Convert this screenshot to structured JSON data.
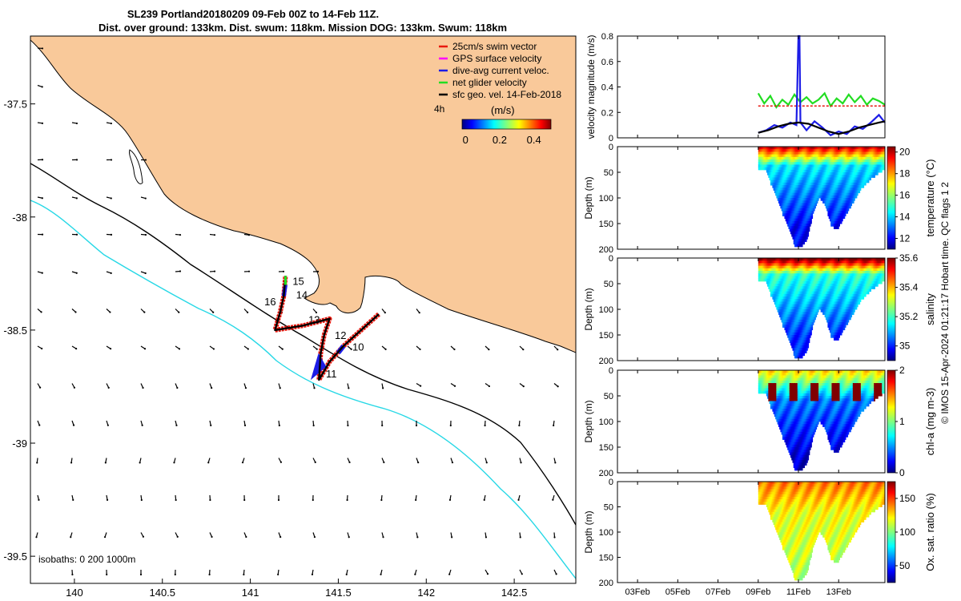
{
  "title": {
    "line1": "SL239 Portland20180209 09-Feb 00Z to 14-Feb 11Z.",
    "line2": "Dist. over ground: 133km. Dist. swum: 118km. Mission DOG: 133km. Swum: 118km"
  },
  "credit": "© IMOS 15-Apr-2024 01:21:17 Hobart time. QC flags 1  2",
  "colors": {
    "land": "#F9C99A",
    "coast": "#000000",
    "isobath_200": "#000000",
    "isobath_1000": "#27D8E6",
    "swim": "#E8190F",
    "gps": "#FF00FF",
    "current": "#1C1CE6",
    "net": "#22DD22",
    "sfc": "#000000"
  },
  "map": {
    "legend": [
      {
        "label": "25cm/s swim vector",
        "color": "#E8190F"
      },
      {
        "label": "GPS surface velocity",
        "color": "#FF00FF"
      },
      {
        "label": "dive-avg current veloc.",
        "color": "#1C1CE6"
      },
      {
        "label": "net glider velocity",
        "color": "#22DD22"
      },
      {
        "label": "sfc geo. vel. 14-Feb-2018",
        "color": "#000000"
      }
    ],
    "colorbar": {
      "label": "(m/s)",
      "ticks": [
        "0",
        "0.2",
        "0.4"
      ],
      "interval_label": "4h"
    },
    "isobaths_label": "isobaths: 0   200  1000m",
    "xlim": [
      139.75,
      142.85
    ],
    "ylim": [
      -39.62,
      -37.2
    ],
    "xticks": [
      {
        "v": 140,
        "t": "140"
      },
      {
        "v": 140.5,
        "t": "140.5"
      },
      {
        "v": 141,
        "t": "141"
      },
      {
        "v": 141.5,
        "t": "141.5"
      },
      {
        "v": 142,
        "t": "142"
      },
      {
        "v": 142.5,
        "t": "142.5"
      }
    ],
    "yticks": [
      {
        "v": -37.5,
        "t": "-37.5"
      },
      {
        "v": -38,
        "t": "-38"
      },
      {
        "v": -38.5,
        "t": "-38.5"
      },
      {
        "v": -39,
        "t": "-39"
      },
      {
        "v": -39.5,
        "t": "-39.5"
      }
    ],
    "day_labels": [
      {
        "t": "10",
        "lon": 141.58,
        "lat": -38.59
      },
      {
        "t": "11",
        "lon": 141.43,
        "lat": -38.71
      },
      {
        "t": "12",
        "lon": 141.48,
        "lat": -38.54
      },
      {
        "t": "13",
        "lon": 141.33,
        "lat": -38.47
      },
      {
        "t": "14",
        "lon": 141.26,
        "lat": -38.36
      },
      {
        "t": "15",
        "lon": 141.24,
        "lat": -38.3
      },
      {
        "t": "16",
        "lon": 141.08,
        "lat": -38.39
      }
    ],
    "track": [
      [
        141.73,
        -38.43
      ],
      [
        141.63,
        -38.5
      ],
      [
        141.53,
        -38.57
      ],
      [
        141.45,
        -38.64
      ],
      [
        141.39,
        -38.72
      ],
      [
        141.4,
        -38.6
      ],
      [
        141.42,
        -38.52
      ],
      [
        141.45,
        -38.45
      ],
      [
        141.3,
        -38.48
      ],
      [
        141.14,
        -38.5
      ],
      [
        141.17,
        -38.42
      ],
      [
        141.19,
        -38.35
      ],
      [
        141.2,
        -38.26
      ]
    ]
  },
  "chart_data": [
    {
      "type": "line",
      "ylabel": "velocity magnitude (m/s)",
      "ylim": [
        0,
        0.8
      ],
      "yticks": [
        "0",
        "0.2",
        "0.4",
        "0.6",
        "0.8"
      ],
      "xlim": [
        2,
        15.3
      ],
      "series": [
        {
          "name": "net glider velocity",
          "color": "#22DD22",
          "x": [
            9.0,
            9.3,
            9.6,
            9.9,
            10.2,
            10.5,
            10.8,
            11.1,
            11.4,
            11.7,
            12.0,
            12.3,
            12.6,
            12.9,
            13.2,
            13.5,
            13.8,
            14.1,
            14.4,
            14.7,
            15.0,
            15.3
          ],
          "y": [
            0.35,
            0.27,
            0.33,
            0.24,
            0.3,
            0.26,
            0.34,
            0.28,
            0.32,
            0.27,
            0.3,
            0.35,
            0.25,
            0.31,
            0.27,
            0.34,
            0.28,
            0.33,
            0.26,
            0.31,
            0.29,
            0.26
          ]
        },
        {
          "name": "25cm/s swim vector",
          "color": "#E8190F",
          "x": [
            9.0,
            15.3
          ],
          "y": [
            0.25,
            0.25
          ]
        },
        {
          "name": "dive-avg current veloc.",
          "color": "#1C1CE6",
          "x": [
            9.0,
            9.4,
            9.8,
            10.2,
            10.6,
            10.9,
            11.0,
            11.05,
            11.1,
            11.4,
            11.8,
            12.2,
            12.6,
            13.0,
            13.4,
            13.8,
            14.2,
            14.6,
            15.0,
            15.3
          ],
          "y": [
            0.04,
            0.06,
            0.1,
            0.08,
            0.12,
            0.1,
            0.8,
            0.8,
            0.12,
            0.06,
            0.13,
            0.08,
            0.02,
            0.05,
            0.03,
            0.09,
            0.07,
            0.12,
            0.18,
            0.12
          ]
        },
        {
          "name": "sfc geo. vel.",
          "color": "#000000",
          "x": [
            9.0,
            9.5,
            10.0,
            10.5,
            11.0,
            11.5,
            12.0,
            12.5,
            13.0,
            13.5,
            14.0,
            14.5,
            15.0,
            15.3
          ],
          "y": [
            0.04,
            0.06,
            0.09,
            0.11,
            0.12,
            0.11,
            0.08,
            0.05,
            0.03,
            0.05,
            0.08,
            0.1,
            0.12,
            0.13
          ]
        }
      ]
    },
    {
      "type": "heatmap",
      "ylabel": "Depth (m)",
      "cblabel": "temperature (°C)",
      "ylim": [
        0,
        200
      ],
      "clim": [
        11,
        20.5
      ],
      "cbticks": [
        {
          "v": 12,
          "t": "12"
        },
        {
          "v": 14,
          "t": "14"
        },
        {
          "v": 16,
          "t": "16"
        },
        {
          "v": 18,
          "t": "18"
        },
        {
          "v": 20,
          "t": "20"
        }
      ],
      "surface_value": 19.5,
      "deep_value": 12.2,
      "thermocline_m": 35
    },
    {
      "type": "heatmap",
      "ylabel": "Depth (m)",
      "cblabel": "salinity",
      "ylim": [
        0,
        200
      ],
      "clim": [
        34.9,
        35.6
      ],
      "cbticks": [
        {
          "v": 35,
          "t": "35"
        },
        {
          "v": 35.2,
          "t": "35.2"
        },
        {
          "v": 35.4,
          "t": "35.4"
        },
        {
          "v": 35.6,
          "t": "35.6"
        }
      ],
      "surface_value": 35.6,
      "deep_value": 35.02,
      "thermocline_m": 30
    },
    {
      "type": "heatmap",
      "ylabel": "Depth (m)",
      "cblabel": "chl-a (mg m-3)",
      "ylim": [
        0,
        200
      ],
      "clim": [
        0,
        2
      ],
      "cbticks": [
        {
          "v": 0,
          "t": "0"
        },
        {
          "v": 1,
          "t": "1"
        },
        {
          "v": 2,
          "t": "2"
        }
      ],
      "surface_value": 1.3,
      "deep_value": 0.15,
      "thermocline_m": 55
    },
    {
      "type": "heatmap",
      "ylabel": "Depth (m)",
      "cblabel": "Ox. sat. ratio (%)",
      "ylim": [
        0,
        200
      ],
      "clim": [
        25,
        175
      ],
      "cbticks": [
        {
          "v": 50,
          "t": "50"
        },
        {
          "v": 100,
          "t": "100"
        },
        {
          "v": 150,
          "t": "150"
        }
      ],
      "surface_value": 138,
      "deep_value": 108,
      "thermocline_m": 60
    }
  ],
  "shared_x": {
    "xlim": [
      2,
      15.3
    ],
    "ticks": [
      {
        "v": 3,
        "t": "03Feb"
      },
      {
        "v": 5,
        "t": "05Feb"
      },
      {
        "v": 7,
        "t": "07Feb"
      },
      {
        "v": 9,
        "t": "09Feb"
      },
      {
        "v": 11,
        "t": "11Feb"
      },
      {
        "v": 13,
        "t": "13Feb"
      }
    ],
    "depth_ticks": [
      "0",
      "50",
      "100",
      "150",
      "200"
    ],
    "data_start": 9.0,
    "bottom_profile": [
      [
        9.0,
        45
      ],
      [
        9.4,
        45
      ],
      [
        9.6,
        70
      ],
      [
        9.9,
        95
      ],
      [
        10.2,
        130
      ],
      [
        10.5,
        155
      ],
      [
        10.8,
        192
      ],
      [
        11.1,
        195
      ],
      [
        11.4,
        180
      ],
      [
        11.7,
        130
      ],
      [
        12.0,
        95
      ],
      [
        12.3,
        110
      ],
      [
        12.6,
        150
      ],
      [
        12.9,
        160
      ],
      [
        13.2,
        140
      ],
      [
        13.5,
        120
      ],
      [
        13.8,
        100
      ],
      [
        14.1,
        80
      ],
      [
        14.6,
        60
      ],
      [
        15.3,
        40
      ]
    ]
  }
}
